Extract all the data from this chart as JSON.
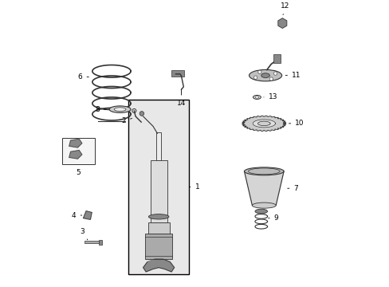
{
  "bg_color": "#ffffff",
  "line_color": "#000000",
  "light_gray": "#aaaaaa",
  "mid_gray": "#888888",
  "dark_gray": "#333333",
  "box_fill": "#e8e8e8"
}
